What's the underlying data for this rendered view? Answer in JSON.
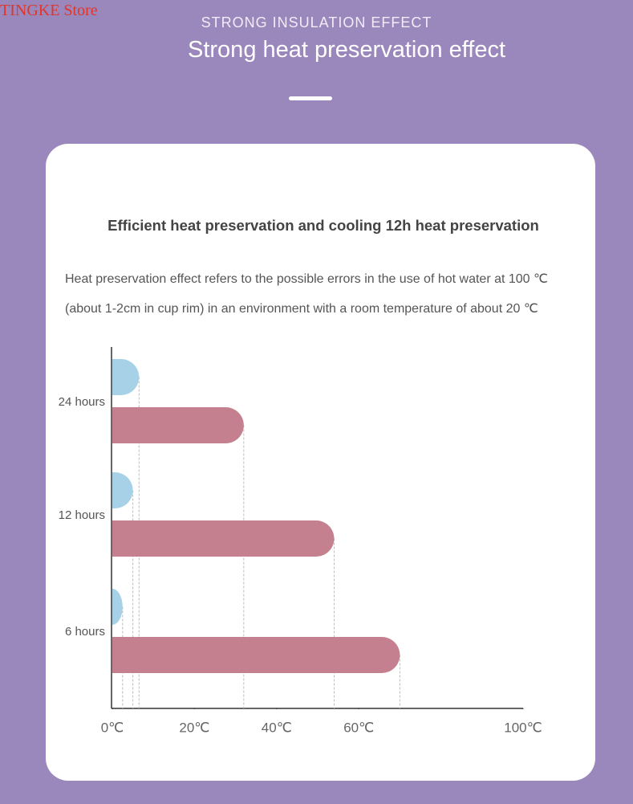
{
  "header": {
    "watermark": "TINGKE Store",
    "kicker": "STRONG INSULATION EFFECT",
    "title": "Strong heat preservation effect"
  },
  "chart_data": {
    "type": "bar",
    "orientation": "horizontal",
    "title": "Efficient heat preservation and cooling 12h heat preservation",
    "subtitle": [
      "Heat preservation effect refers to the possible errors in the use of hot water at 100 ℃",
      "(about 1-2cm in cup rim) in an environment with a room temperature of about 20 ℃"
    ],
    "categories": [
      "24 hours",
      "12 hours",
      "6 hours"
    ],
    "series": [
      {
        "color": "#a6d1e6",
        "values": [
          6.5,
          5,
          2.5
        ]
      },
      {
        "color": "#c4808e",
        "values": [
          32,
          54,
          70
        ]
      }
    ],
    "xlim": [
      0,
      100
    ],
    "xticks": [
      {
        "value": 0,
        "label": "0℃"
      },
      {
        "value": 20,
        "label": "20℃"
      },
      {
        "value": 40,
        "label": "40℃"
      },
      {
        "value": 60,
        "label": "60℃"
      },
      {
        "value": 100,
        "label": "100℃"
      }
    ]
  }
}
